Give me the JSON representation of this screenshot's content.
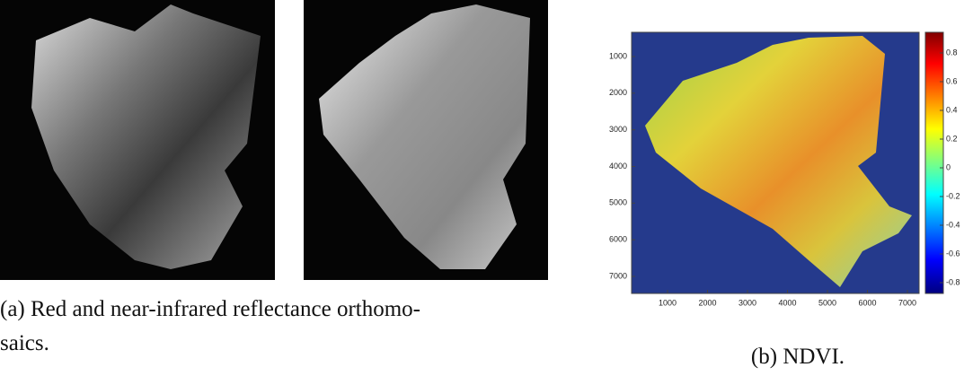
{
  "panel_a": {
    "caption_lines": [
      "(a) Red and near-infrared reflectance orthomo-",
      "saics."
    ]
  },
  "panel_b": {
    "caption": "(b) NDVI.",
    "xticks": [
      1000,
      2000,
      3000,
      4000,
      5000,
      6000,
      7000
    ],
    "yticks": [
      1000,
      2000,
      3000,
      4000,
      5000,
      6000,
      7000
    ],
    "colorbar_ticks": [
      0.8,
      0.6,
      0.4,
      0.2,
      0,
      -0.2,
      -0.4,
      -0.6,
      -0.8
    ]
  }
}
